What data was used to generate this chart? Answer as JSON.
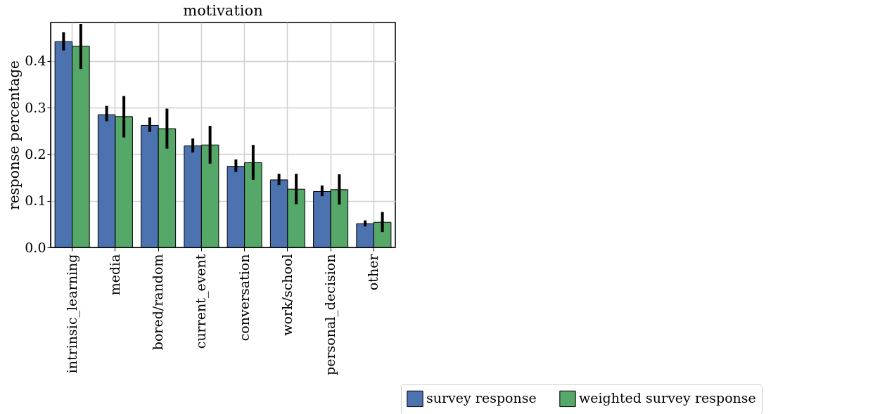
{
  "chart_data": {
    "type": "bar",
    "title": "motivation",
    "ylabel": "response percentage",
    "categories": [
      "intrinsic_learning",
      "media",
      "bored/random",
      "current_event",
      "conversation",
      "work/school",
      "personal_decision",
      "other"
    ],
    "series": [
      {
        "name": "survey response",
        "color": "#4c72b0",
        "values": [
          0.442,
          0.285,
          0.262,
          0.218,
          0.174,
          0.145,
          0.12,
          0.051
        ],
        "errors": [
          [
            0.423,
            0.462
          ],
          [
            0.271,
            0.304
          ],
          [
            0.248,
            0.279
          ],
          [
            0.204,
            0.234
          ],
          [
            0.162,
            0.189
          ],
          [
            0.134,
            0.158
          ],
          [
            0.11,
            0.133
          ],
          [
            0.045,
            0.058
          ]
        ]
      },
      {
        "name": "weighted survey response",
        "color": "#55a868",
        "values": [
          0.432,
          0.281,
          0.255,
          0.22,
          0.182,
          0.125,
          0.124,
          0.054
        ],
        "errors": [
          [
            0.383,
            0.48
          ],
          [
            0.236,
            0.325
          ],
          [
            0.212,
            0.298
          ],
          [
            0.18,
            0.261
          ],
          [
            0.145,
            0.22
          ],
          [
            0.093,
            0.158
          ],
          [
            0.092,
            0.157
          ],
          [
            0.033,
            0.076
          ]
        ]
      }
    ],
    "ylim": [
      0,
      0.483
    ],
    "yticks": [
      {
        "value": 0,
        "label": "0.0"
      },
      0.1,
      0.2,
      0.3,
      0.4
    ],
    "grid": true,
    "legend": "bottom right"
  }
}
